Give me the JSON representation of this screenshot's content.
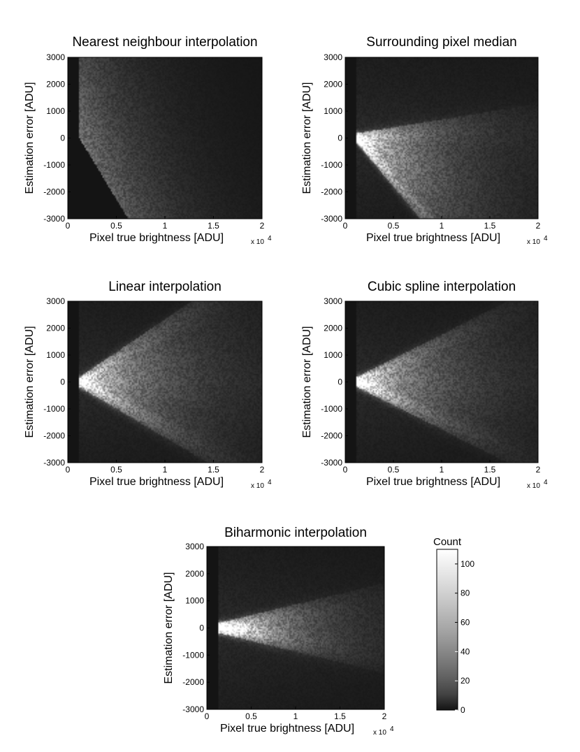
{
  "chart_data": [
    {
      "type": "heatmap",
      "title": "Nearest neighbour interpolation",
      "xlabel": "Pixel true brightness [ADU]",
      "ylabel": "Estimation error [ADU]",
      "x_multiplier": "x 10",
      "x_multiplier_exp": "4",
      "xlim": [
        0,
        2
      ],
      "ylim": [
        -3000,
        3000
      ],
      "xticks": [
        "0",
        "0.5",
        "1",
        "1.5",
        "2"
      ],
      "yticks": [
        "3000",
        "2000",
        "1000",
        "0",
        "-1000",
        "-2000",
        "-3000"
      ],
      "density": {
        "pattern": "wedge",
        "x_start": 0.12,
        "upper_slope": 0,
        "lower_slope": -6000,
        "spread": 1,
        "peak": 30
      }
    },
    {
      "type": "heatmap",
      "title": "Surrounding pixel median",
      "xlabel": "Pixel true brightness [ADU]",
      "ylabel": "Estimation error [ADU]",
      "x_multiplier": "x 10",
      "x_multiplier_exp": "4",
      "xlim": [
        0,
        2
      ],
      "ylim": [
        -3000,
        3000
      ],
      "xticks": [
        "0",
        "0.5",
        "1",
        "1.5",
        "2"
      ],
      "yticks": [
        "3000",
        "2000",
        "1000",
        "0",
        "-1000",
        "-2000",
        "-3000"
      ],
      "density": {
        "pattern": "fan",
        "x_start": 0.12,
        "upper_slope": 300,
        "lower_slope": -4000,
        "spread": 0.7,
        "peak": 100,
        "zero_line": true
      }
    },
    {
      "type": "heatmap",
      "title": "Linear interpolation",
      "xlabel": "Pixel true brightness [ADU]",
      "ylabel": "Estimation error [ADU]",
      "x_multiplier": "x 10",
      "x_multiplier_exp": "4",
      "xlim": [
        0,
        2
      ],
      "ylim": [
        -3000,
        3000
      ],
      "xticks": [
        "0",
        "0.5",
        "1",
        "1.5",
        "2"
      ],
      "yticks": [
        "3000",
        "2000",
        "1000",
        "0",
        "-1000",
        "-2000",
        "-3000"
      ],
      "density": {
        "pattern": "fan",
        "x_start": 0.12,
        "upper_slope": 2200,
        "lower_slope": -1900,
        "spread": 0.6,
        "peak": 100,
        "zero_line": true
      }
    },
    {
      "type": "heatmap",
      "title": "Cubic spline interpolation",
      "xlabel": "Pixel true brightness [ADU]",
      "ylabel": "Estimation error [ADU]",
      "x_multiplier": "x 10",
      "x_multiplier_exp": "4",
      "xlim": [
        0,
        2
      ],
      "ylim": [
        -3000,
        3000
      ],
      "xticks": [
        "0",
        "0.5",
        "1",
        "1.5",
        "2"
      ],
      "yticks": [
        "3000",
        "2000",
        "1000",
        "0",
        "-1000",
        "-2000",
        "-3000"
      ],
      "density": {
        "pattern": "fan",
        "x_start": 0.12,
        "upper_slope": 1600,
        "lower_slope": -1600,
        "spread": 0.5,
        "peak": 100,
        "zero_line": true
      }
    },
    {
      "type": "heatmap",
      "title": "Biharmonic interpolation",
      "xlabel": "Pixel true brightness [ADU]",
      "ylabel": "Estimation error [ADU]",
      "x_multiplier": "x 10",
      "x_multiplier_exp": "4",
      "xlim": [
        0,
        2
      ],
      "ylim": [
        -3000,
        3000
      ],
      "xticks": [
        "0",
        "0.5",
        "1",
        "1.5",
        "2"
      ],
      "yticks": [
        "3000",
        "2000",
        "1000",
        "0",
        "-1000",
        "-2000",
        "-3000"
      ],
      "density": {
        "pattern": "fan",
        "x_start": 0.13,
        "upper_slope": 550,
        "lower_slope": -550,
        "spread": 0.6,
        "peak": 110,
        "zero_line": false
      }
    }
  ],
  "colorbar": {
    "label": "Count",
    "range": [
      0,
      110
    ],
    "ticks": [
      "100",
      "80",
      "60",
      "40",
      "20",
      "0"
    ],
    "colormap": "gray"
  }
}
